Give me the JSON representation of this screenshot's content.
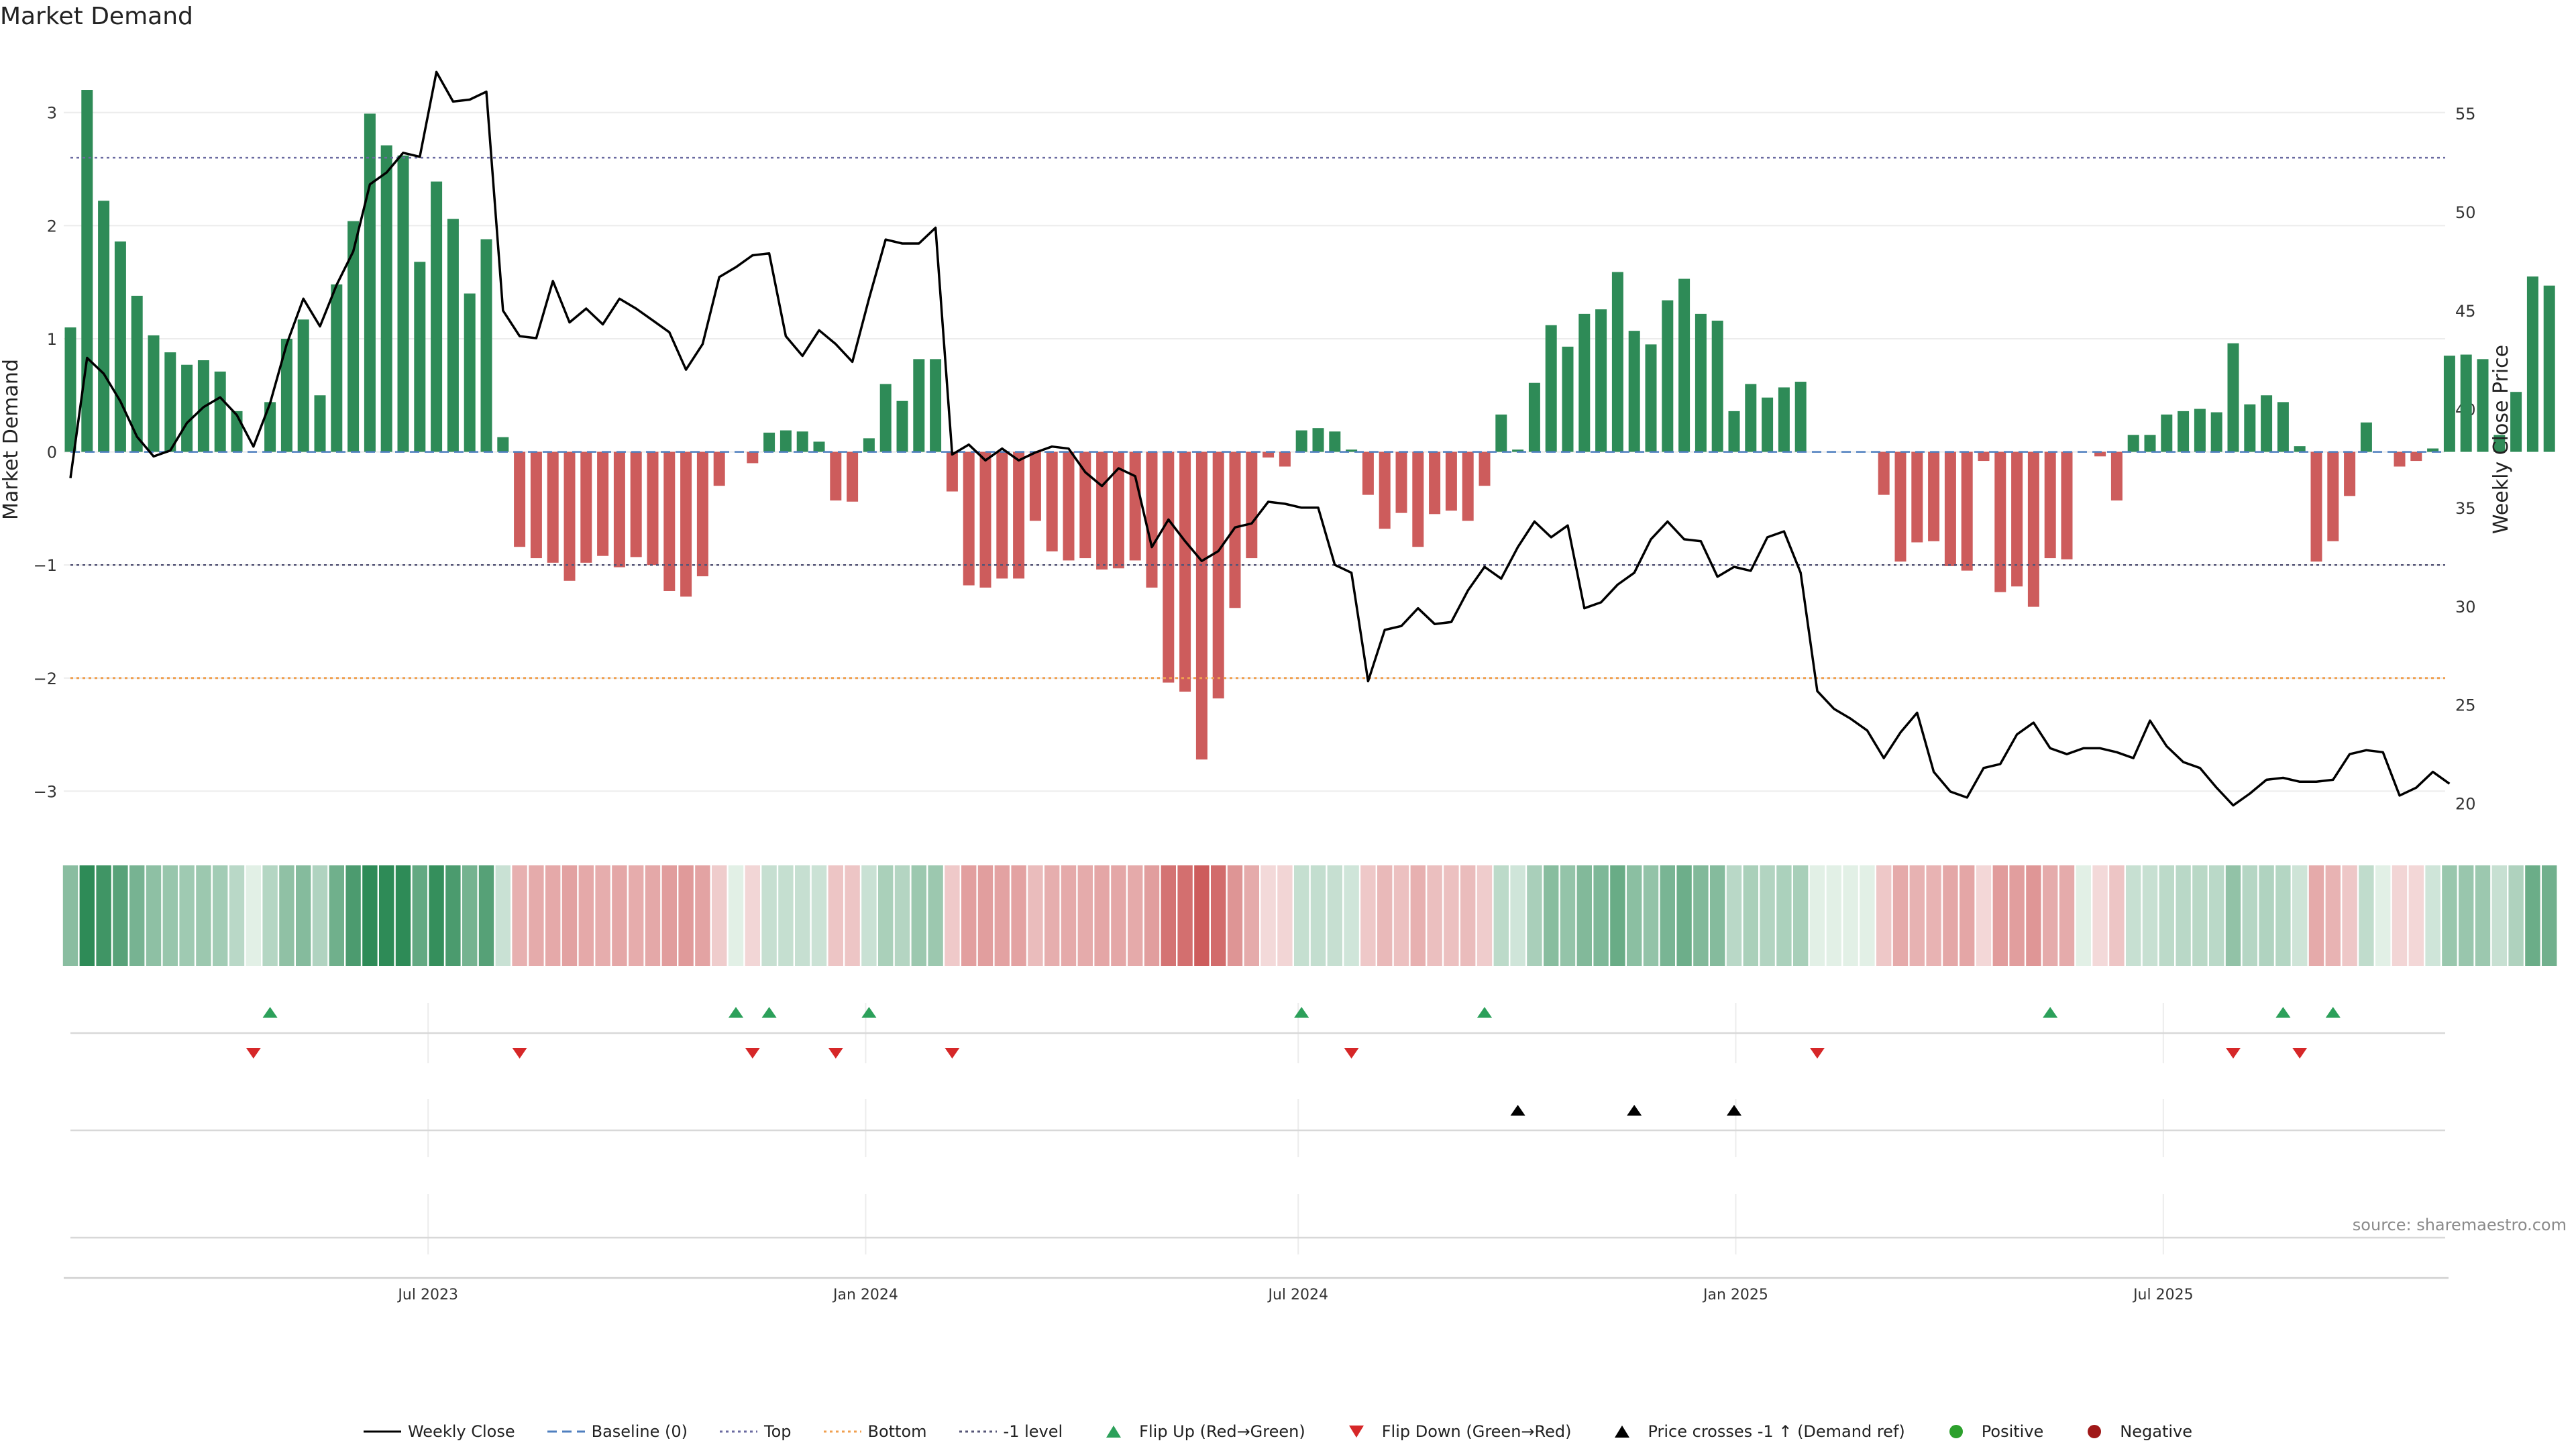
{
  "title": "Market Demand",
  "source": "source: sharemaestro.com",
  "colors": {
    "positive": "#2e8b57",
    "negative": "#cd5c5c",
    "price": "#000000",
    "top": "#6a6aa0",
    "bottom": "#f0a050",
    "minus_one": "#555577",
    "baseline": "#4f7fbf",
    "flip_up": "#2ca05a",
    "flip_down": "#d62728",
    "cross": "#000000",
    "pos_dot": "#2ca02c",
    "neg_dot": "#a01818"
  },
  "chart_data": {
    "type": "bar",
    "title": "Market Demand",
    "ylabel": "Market Demand",
    "y2label": "Weekly Close Price",
    "ylim": [
      -3.3,
      3.55
    ],
    "y2lim": [
      18.9,
      58.2
    ],
    "yticks": [
      -3,
      -2,
      -1,
      0,
      1,
      2,
      3
    ],
    "yticklabels": [
      "−3",
      "−2",
      "−1",
      "0",
      "1",
      "2",
      "3"
    ],
    "y2ticks": [
      20,
      25,
      30,
      35,
      40,
      45,
      50,
      55
    ],
    "y2ticklabels": [
      "20",
      "25",
      "30",
      "35",
      "40",
      "45",
      "50",
      "55"
    ],
    "reference_lines": {
      "top": 2.6,
      "bottom": -2.0,
      "minus_one": -1.0,
      "baseline": 0
    },
    "x_ticks": [
      {
        "week": 21.5,
        "label": "Jul 2023"
      },
      {
        "week": 47.8,
        "label": "Jan 2024"
      },
      {
        "week": 73.8,
        "label": "Jul 2024"
      },
      {
        "week": 100.1,
        "label": "Jan 2025"
      },
      {
        "week": 125.8,
        "label": "Jul 2025"
      }
    ],
    "demand": [
      1.1,
      3.2,
      2.22,
      1.86,
      1.38,
      1.03,
      0.88,
      0.77,
      0.81,
      0.71,
      0.36,
      0,
      0.44,
      1.0,
      1.17,
      0.5,
      1.48,
      2.04,
      2.99,
      2.71,
      2.62,
      1.68,
      2.39,
      2.06,
      1.4,
      1.88,
      0.13,
      -0.84,
      -0.94,
      -0.98,
      -1.14,
      -0.98,
      -0.92,
      -1.02,
      -0.93,
      -1.0,
      -1.23,
      -1.28,
      -1.1,
      -0.3,
      0,
      -0.1,
      0.17,
      0.19,
      0.18,
      0.09,
      -0.43,
      -0.44,
      0.12,
      0.6,
      0.45,
      0.82,
      0.82,
      -0.35,
      -1.18,
      -1.2,
      -1.12,
      -1.12,
      -0.61,
      -0.88,
      -0.96,
      -0.94,
      -1.04,
      -1.03,
      -0.96,
      -1.2,
      -2.04,
      -2.12,
      -2.72,
      -2.18,
      -1.38,
      -0.94,
      -0.05,
      -0.13,
      0.19,
      0.21,
      0.18,
      0.02,
      -0.38,
      -0.68,
      -0.54,
      -0.84,
      -0.55,
      -0.52,
      -0.61,
      -0.3,
      0.33,
      0.02,
      0.61,
      1.12,
      0.93,
      1.22,
      1.26,
      1.59,
      1.07,
      0.95,
      1.34,
      1.53,
      1.22,
      1.16,
      0.36,
      0.6,
      0.48,
      0.57,
      0.62,
      0,
      0,
      0,
      0,
      -0.38,
      -0.97,
      -0.8,
      -0.79,
      -1.01,
      -1.05,
      -0.08,
      -1.24,
      -1.19,
      -1.37,
      -0.94,
      -0.95,
      0,
      -0.04,
      -0.43,
      0.15,
      0.15,
      0.33,
      0.36,
      0.38,
      0.35,
      0.96,
      0.42,
      0.5,
      0.44,
      0.05,
      -0.97,
      -0.79,
      -0.39,
      0.26,
      0,
      -0.13,
      -0.08,
      0.03,
      0.85,
      0.86,
      0.82,
      0.15,
      0.53,
      1.55,
      1.47
    ],
    "price": [
      36.5,
      42.6,
      41.8,
      40.4,
      38.6,
      37.6,
      37.9,
      39.3,
      40.1,
      40.6,
      39.7,
      38.1,
      40.3,
      43.3,
      45.6,
      44.2,
      46.3,
      48.0,
      51.4,
      52.0,
      53.0,
      52.8,
      57.1,
      55.6,
      55.7,
      56.1,
      45.0,
      43.7,
      43.6,
      46.5,
      44.4,
      45.1,
      44.3,
      45.6,
      45.1,
      44.5,
      43.9,
      42.0,
      43.3,
      46.7,
      47.2,
      47.8,
      47.9,
      43.7,
      42.7,
      44.0,
      43.3,
      42.4,
      45.6,
      48.6,
      48.4,
      48.4,
      49.2,
      37.7,
      38.2,
      37.4,
      38.0,
      37.4,
      37.8,
      38.1,
      38.0,
      36.8,
      36.1,
      37.0,
      36.6,
      33.0,
      34.4,
      33.3,
      32.3,
      32.8,
      34.0,
      34.2,
      35.3,
      35.2,
      35.0,
      35.0,
      32.1,
      31.7,
      26.2,
      28.8,
      29.0,
      29.9,
      29.1,
      29.2,
      30.8,
      32.0,
      31.4,
      33.0,
      34.3,
      33.5,
      34.1,
      29.9,
      30.2,
      31.1,
      31.7,
      33.4,
      34.3,
      33.4,
      33.3,
      31.5,
      32.0,
      31.8,
      33.5,
      33.8,
      31.7,
      25.7,
      24.8,
      24.3,
      23.7,
      22.3,
      23.6,
      24.6,
      21.6,
      20.6,
      20.3,
      21.8,
      22.0,
      23.5,
      24.1,
      22.8,
      22.5,
      22.8,
      22.8,
      22.6,
      22.3,
      24.2,
      22.9,
      22.1,
      21.8,
      20.8,
      19.9,
      20.5,
      21.2,
      21.3,
      21.1,
      21.1,
      21.2,
      22.5,
      22.7,
      22.6,
      20.4,
      20.8,
      21.6,
      21.0
    ],
    "flip_up_weeks": [
      12,
      40,
      42,
      48,
      74,
      85,
      119,
      133,
      136
    ],
    "flip_down_weeks": [
      11,
      27,
      41,
      46,
      53,
      77,
      105,
      130,
      134
    ],
    "price_cross_weeks": [
      87,
      94,
      100
    ]
  },
  "legend": [
    {
      "key": "weekly_close",
      "label": "Weekly Close"
    },
    {
      "key": "baseline",
      "label": "Baseline (0)"
    },
    {
      "key": "top",
      "label": "Top"
    },
    {
      "key": "bottom",
      "label": "Bottom"
    },
    {
      "key": "minus_one",
      "label": "-1 level"
    },
    {
      "key": "flip_up",
      "label": "Flip Up (Red→Green)"
    },
    {
      "key": "flip_down",
      "label": "Flip Down (Green→Red)"
    },
    {
      "key": "price_cross",
      "label": "Price crosses -1 ↑ (Demand ref)"
    },
    {
      "key": "positive",
      "label": "Positive"
    },
    {
      "key": "negative",
      "label": "Negative"
    }
  ]
}
